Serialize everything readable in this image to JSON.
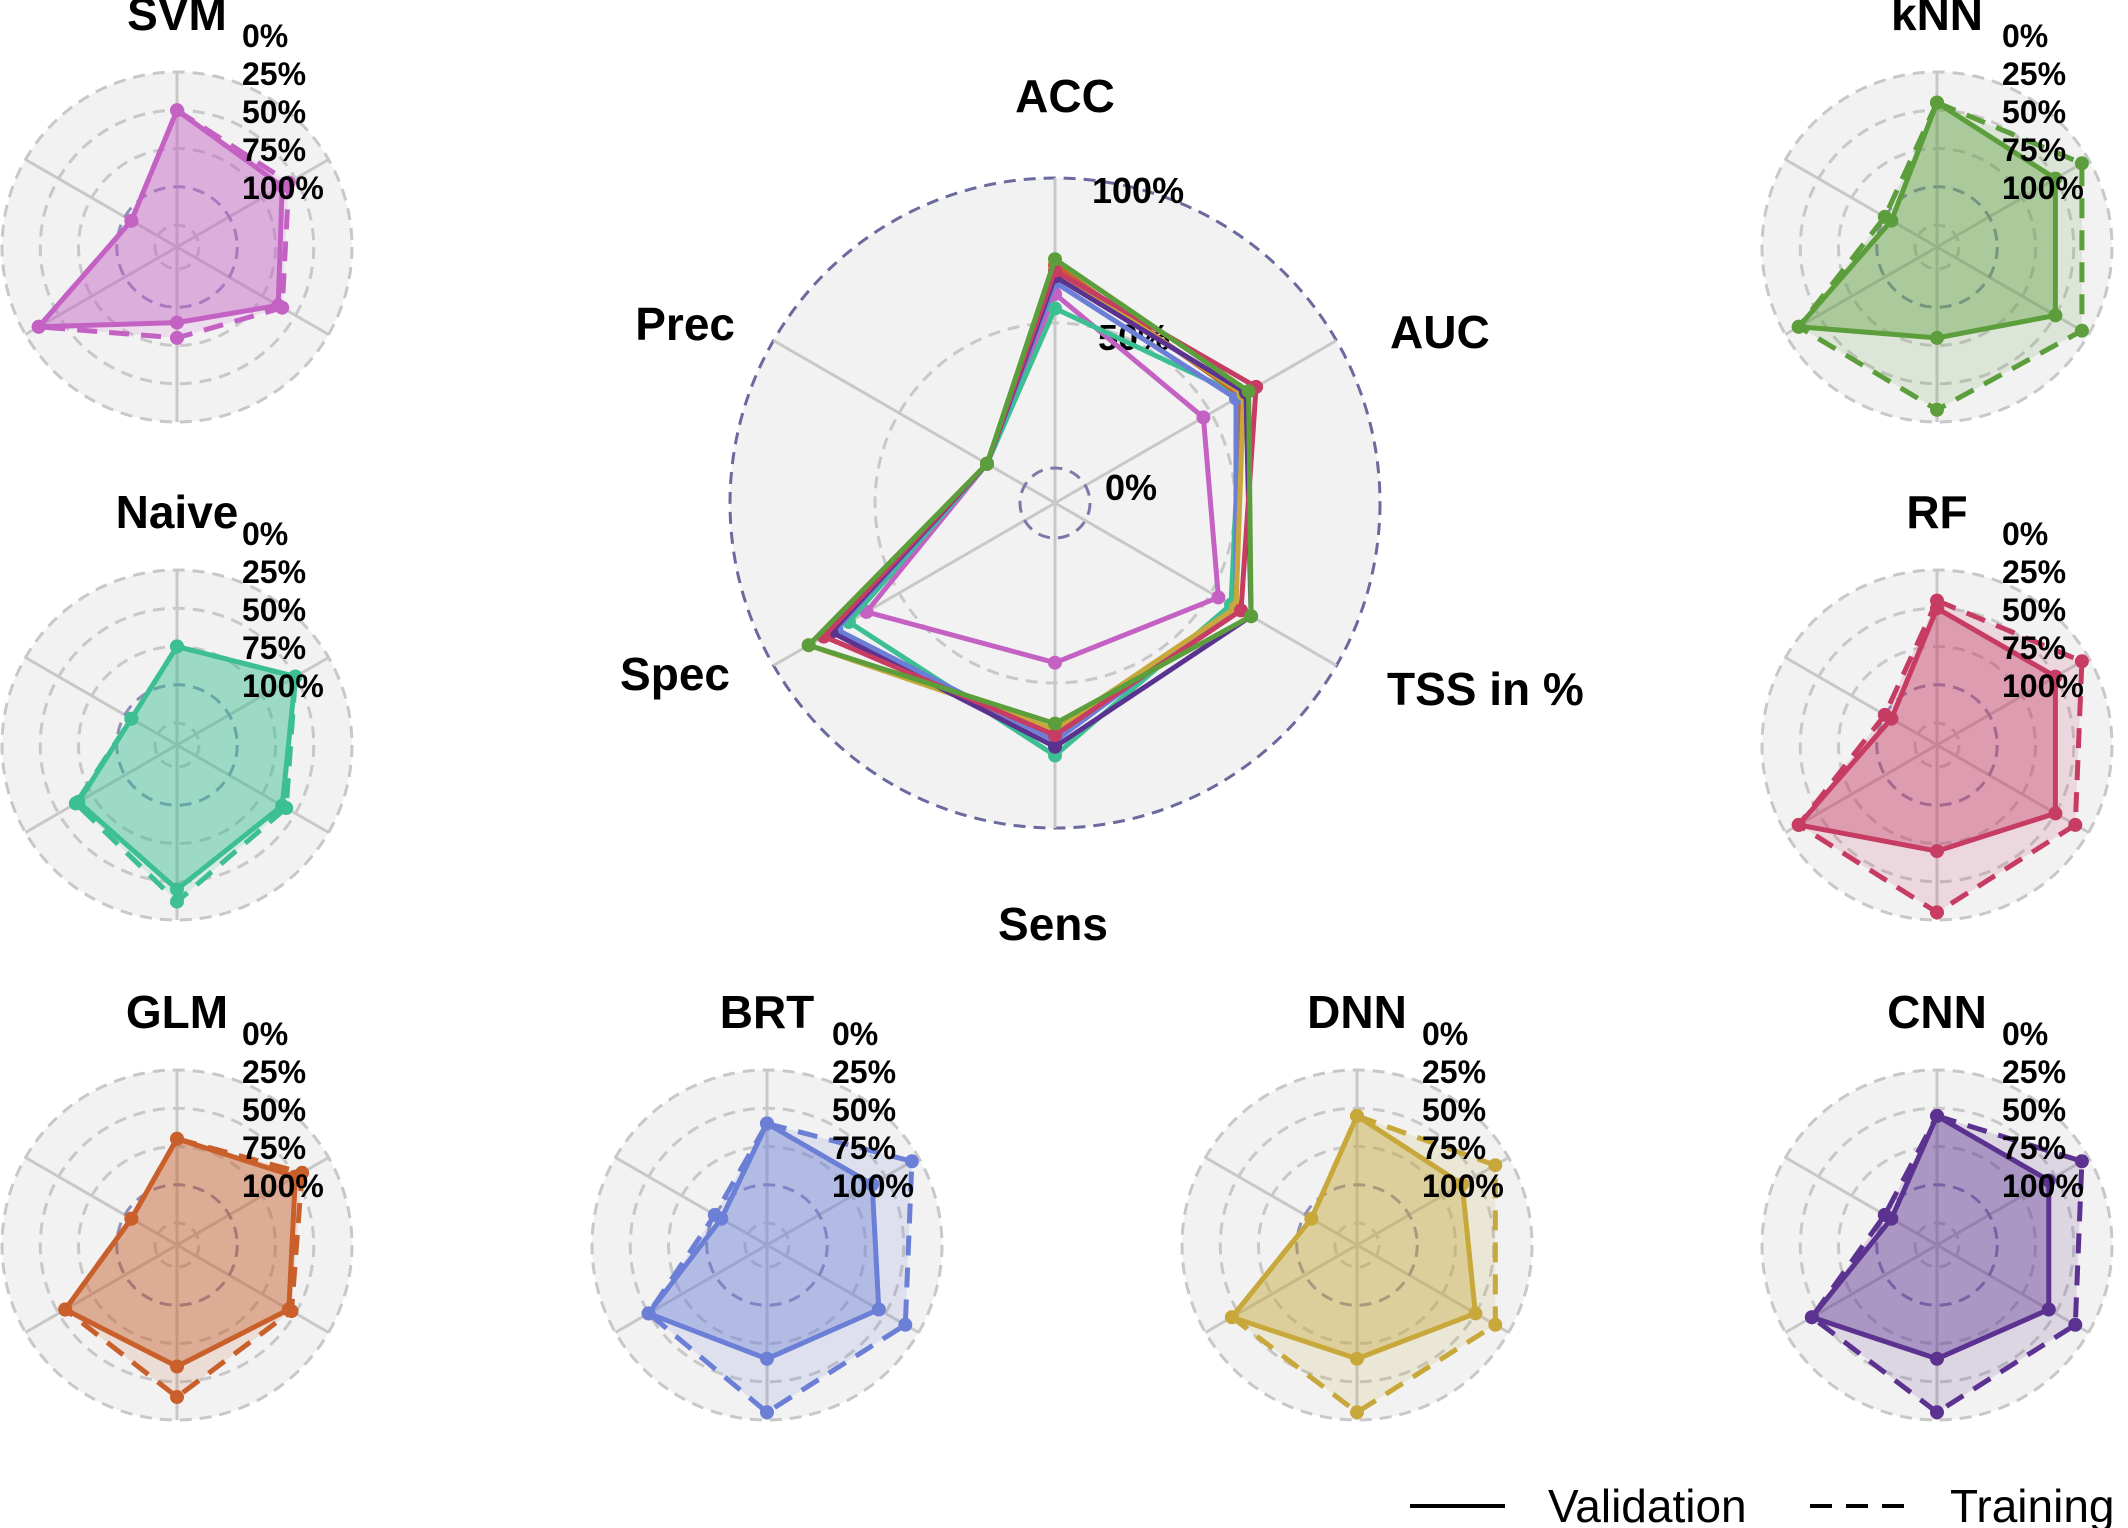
{
  "chart_data": {
    "type": "radar",
    "axes": [
      "ACC",
      "AUC",
      "TSS in %",
      "Sens",
      "Spec",
      "Prec"
    ],
    "rlim": [
      0,
      100
    ],
    "radial_ticks": [
      "0%",
      "25%",
      "50%",
      "75%",
      "100%"
    ],
    "main_radial_ticks": [
      "0%",
      "50%",
      "100%"
    ],
    "grid": true,
    "legend": {
      "position": "bottom-right",
      "entries": [
        {
          "label": "Validation",
          "style": "solid"
        },
        {
          "label": "Training",
          "style": "dashed"
        }
      ]
    },
    "main_chart": {
      "series": [
        {
          "name": "SVM",
          "color": "#c462c4",
          "values": [
            60,
            47,
            53,
            43,
            63,
            15
          ]
        },
        {
          "name": "Naive",
          "color": "#3dbf94",
          "values": [
            55,
            62,
            58,
            75,
            70,
            15
          ]
        },
        {
          "name": "GLM",
          "color": "#c95f2a",
          "values": [
            70,
            62,
            60,
            67,
            80,
            15
          ]
        },
        {
          "name": "BRT",
          "color": "#6b7fd6",
          "values": [
            64,
            60,
            60,
            70,
            75,
            15
          ]
        },
        {
          "name": "DNN",
          "color": "#c8a83a",
          "values": [
            68,
            63,
            60,
            66,
            86,
            15
          ]
        },
        {
          "name": "CNN",
          "color": "#5b3290",
          "values": [
            66,
            64,
            66,
            72,
            77,
            15
          ]
        },
        {
          "name": "RF",
          "color": "#c73c63",
          "values": [
            68,
            68,
            62,
            68,
            80,
            15
          ]
        },
        {
          "name": "kNN",
          "color": "#5c9e3c",
          "values": [
            72,
            65,
            66,
            64,
            86,
            15
          ]
        }
      ]
    },
    "panels": [
      {
        "title": "SVM",
        "color": "#c462c4",
        "validation": [
          75,
          65,
          62,
          35,
          90,
          20
        ],
        "training": [
          75,
          70,
          65,
          45,
          90,
          20
        ]
      },
      {
        "title": "kNN",
        "color": "#5c9e3c",
        "validation": [
          80,
          75,
          75,
          45,
          90,
          20
        ],
        "training": [
          80,
          95,
          95,
          92,
          90,
          25
        ]
      },
      {
        "title": "Naive",
        "color": "#3dbf94",
        "validation": [
          50,
          75,
          65,
          80,
          60,
          20
        ],
        "training": [
          50,
          75,
          68,
          88,
          62,
          20
        ]
      },
      {
        "title": "RF",
        "color": "#c73c63",
        "validation": [
          75,
          75,
          75,
          55,
          90,
          20
        ],
        "training": [
          80,
          95,
          90,
          95,
          90,
          25
        ]
      },
      {
        "title": "GLM",
        "color": "#c95f2a",
        "validation": [
          55,
          75,
          70,
          65,
          70,
          20
        ],
        "training": [
          55,
          80,
          72,
          85,
          70,
          20
        ]
      },
      {
        "title": "BRT",
        "color": "#6b7fd6",
        "validation": [
          65,
          65,
          70,
          60,
          75,
          20
        ],
        "training": [
          65,
          95,
          90,
          95,
          75,
          25
        ]
      },
      {
        "title": "DNN",
        "color": "#c8a83a",
        "validation": [
          70,
          65,
          75,
          60,
          80,
          20
        ],
        "training": [
          70,
          90,
          90,
          95,
          80,
          20
        ]
      },
      {
        "title": "CNN",
        "color": "#5b3290",
        "validation": [
          70,
          70,
          70,
          60,
          80,
          20
        ],
        "training": [
          70,
          95,
          90,
          95,
          80,
          25
        ]
      }
    ]
  }
}
